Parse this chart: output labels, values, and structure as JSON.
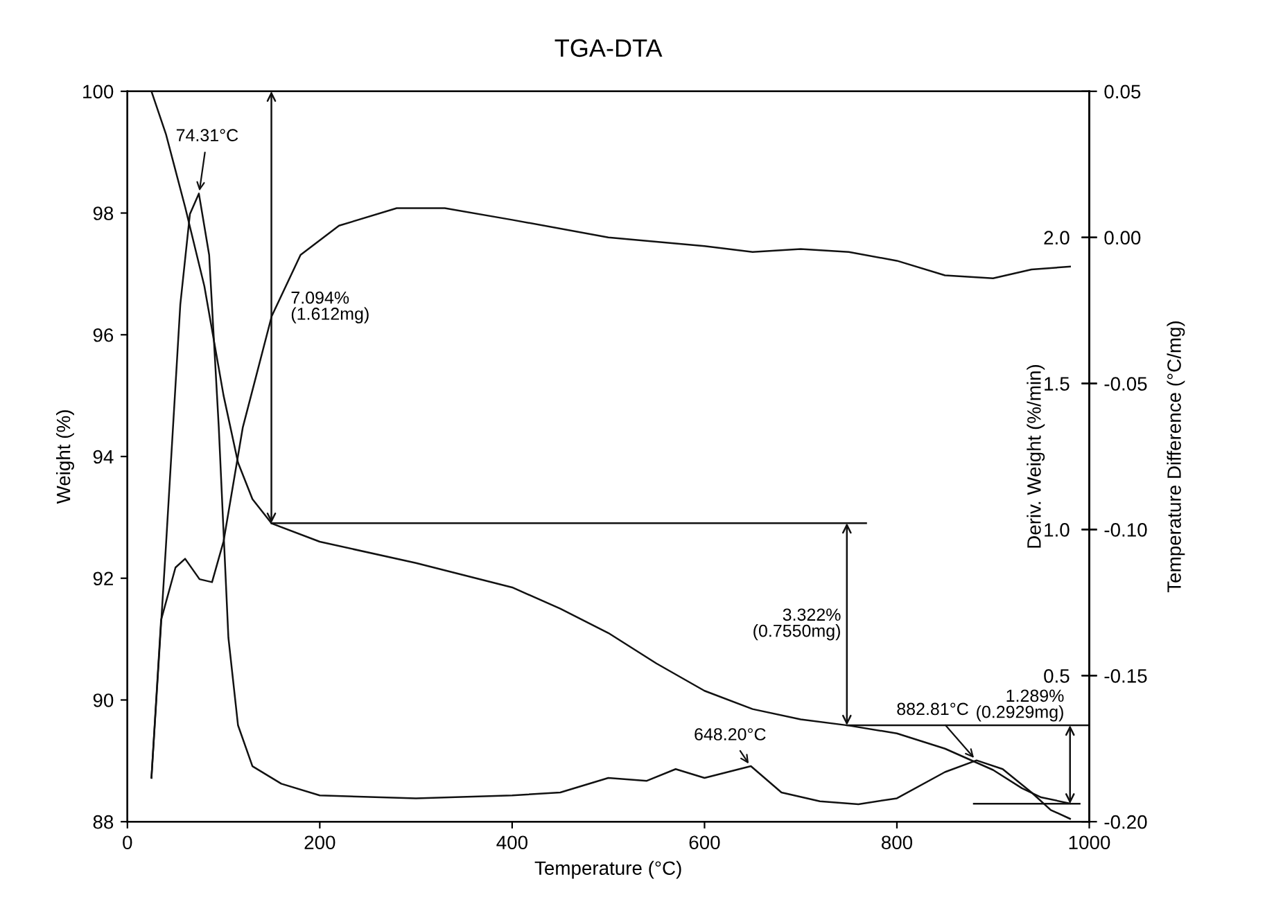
{
  "chart_data": {
    "type": "line",
    "title": "TGA-DTA",
    "xlabel": "Temperature (°C)",
    "ylabel": "Weight (%)",
    "y2label": "Deriv. Weight (%/min)",
    "y3label": "Temperature Difference (°C/mg)",
    "xlim": [
      0,
      1000
    ],
    "xticks": [
      0,
      200,
      400,
      600,
      800,
      1000
    ],
    "ylim": [
      88,
      100
    ],
    "yticks": [
      88,
      90,
      92,
      94,
      96,
      98,
      100
    ],
    "y2lim": [
      0,
      2.5
    ],
    "y2ticks": [
      0.5,
      {
        "value": 1,
        "label": "1.0"
      },
      1.5,
      {
        "value": 2,
        "label": "2.0"
      }
    ],
    "y3lim": [
      -0.2,
      0.05
    ],
    "y3ticks": [
      {
        "value": -0.2,
        "label": "-0.20"
      },
      -0.15,
      {
        "value": -0.1,
        "label": "-0.10"
      },
      -0.05,
      {
        "value": 0,
        "label": "0.00"
      },
      0.05
    ],
    "grid": false,
    "legend": false,
    "line_style": "solid",
    "marker": "none",
    "series": [
      {
        "color": "#111111",
        "axis": "y",
        "x": [
          25,
          40,
          60,
          80,
          100,
          115,
          130,
          150,
          200,
          300,
          400,
          450,
          500,
          550,
          600,
          650,
          700,
          750,
          800,
          850,
          900,
          930,
          950,
          980
        ],
        "values": [
          100,
          99.3,
          98.1,
          96.8,
          95.0,
          93.9,
          93.3,
          92.9,
          92.6,
          92.25,
          91.85,
          91.5,
          91.1,
          90.6,
          90.15,
          89.85,
          89.68,
          89.58,
          89.45,
          89.2,
          88.85,
          88.55,
          88.4,
          88.3
        ]
      },
      {
        "color": "#111111",
        "axis": "y2",
        "x": [
          25,
          40,
          55,
          65,
          74.31,
          85,
          95,
          105,
          115,
          130,
          160,
          200,
          300,
          400,
          450,
          500,
          540,
          570,
          600,
          648.2,
          680,
          720,
          760,
          800,
          850,
          882.81,
          910,
          940,
          960,
          980
        ],
        "values": [
          0.15,
          0.94,
          1.77,
          2.08,
          2.15,
          1.94,
          1.35,
          0.63,
          0.33,
          0.19,
          0.13,
          0.09,
          0.08,
          0.09,
          0.1,
          0.15,
          0.14,
          0.18,
          0.15,
          0.19,
          0.1,
          0.07,
          0.06,
          0.08,
          0.17,
          0.21,
          0.18,
          0.1,
          0.04,
          0.01
        ]
      },
      {
        "color": "#111111",
        "axis": "y3",
        "x": [
          25,
          35,
          50,
          60,
          75,
          88,
          100,
          120,
          150,
          180,
          220,
          280,
          330,
          400,
          500,
          600,
          650,
          700,
          750,
          800,
          850,
          900,
          940,
          980
        ],
        "values": [
          -0.185,
          -0.131,
          -0.113,
          -0.11,
          -0.117,
          -0.118,
          -0.104,
          -0.065,
          -0.027,
          -0.006,
          0.004,
          0.01,
          0.01,
          0.006,
          0.0,
          -0.003,
          -0.005,
          -0.004,
          -0.005,
          -0.008,
          -0.013,
          -0.014,
          -0.011,
          -0.01
        ]
      }
    ],
    "ref_lines": [
      {
        "axis": "y",
        "value": 100
      },
      {
        "axis": "y",
        "value": 92.906
      },
      {
        "axis": "y",
        "value": 89.584
      },
      {
        "axis": "y",
        "value": 88.295
      }
    ],
    "annotations": [
      "7.094%\n(1.612mg)",
      "3.322%\n(0.7550mg)",
      {
        "text": "1.289%\n(0.2929mg)",
        "x": 980,
        "y": 89.584
      },
      {
        "text": "74.31°C",
        "x": 74.31,
        "y": 98.3
      },
      {
        "text": "648.20°C",
        "x": 648.2,
        "y": 88.9
      },
      {
        "text": "882.81°C",
        "x": 882.81,
        "y": 89.0
      }
    ]
  }
}
